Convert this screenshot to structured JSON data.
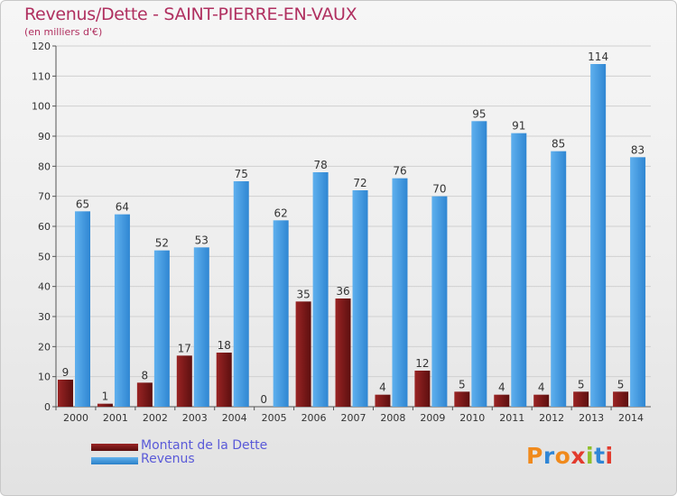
{
  "title": "Revenus/Dette - SAINT-PIERRE-EN-VAUX",
  "subtitle": "(en milliers d'€)",
  "chart_data": {
    "type": "bar",
    "categories": [
      "2000",
      "2001",
      "2002",
      "2003",
      "2004",
      "2005",
      "2006",
      "2007",
      "2008",
      "2009",
      "2010",
      "2011",
      "2012",
      "2013",
      "2014"
    ],
    "series": [
      {
        "name": "Montant de la Dette",
        "color": "#7a1515",
        "values": [
          9,
          1,
          8,
          17,
          18,
          0,
          35,
          36,
          4,
          12,
          5,
          4,
          4,
          5,
          5
        ]
      },
      {
        "name": "Revenus",
        "color": "#3f9ae0",
        "values": [
          65,
          64,
          52,
          53,
          75,
          62,
          78,
          72,
          76,
          70,
          95,
          91,
          85,
          114,
          83
        ]
      }
    ],
    "yticks": [
      0,
      10,
      20,
      30,
      40,
      50,
      60,
      70,
      80,
      90,
      100,
      110,
      120
    ],
    "ylim": [
      0,
      120
    ],
    "grid": true
  },
  "legend": {
    "debt_label": "Montant de la Dette",
    "revenue_label": "Revenus"
  },
  "logo": {
    "text": "Proxiti",
    "colors": [
      "#f08a1c",
      "#2f86d6",
      "#f08a1c",
      "#e23b2e",
      "#8fbf2a",
      "#2f86d6",
      "#e23b2e"
    ]
  }
}
